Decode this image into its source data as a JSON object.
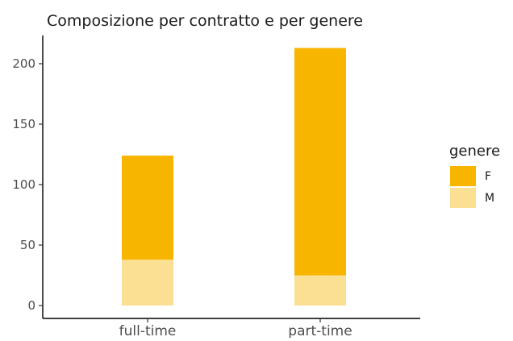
{
  "chart_data": {
    "type": "bar",
    "stacked": true,
    "title": "Composizione per contratto e per genere",
    "xlabel": "",
    "ylabel": "",
    "categories": [
      "full-time",
      "part-time"
    ],
    "series": [
      {
        "name": "F",
        "color": "#F7B500",
        "values": [
          86,
          188
        ]
      },
      {
        "name": "M",
        "color": "#FBDF93",
        "values": [
          38,
          25
        ]
      }
    ],
    "ylim": [
      0,
      215
    ],
    "yticks": [
      0,
      50,
      100,
      150,
      200
    ],
    "grid": false,
    "legend": {
      "title": "genere",
      "position": "right",
      "entries": [
        "F",
        "M"
      ]
    }
  }
}
